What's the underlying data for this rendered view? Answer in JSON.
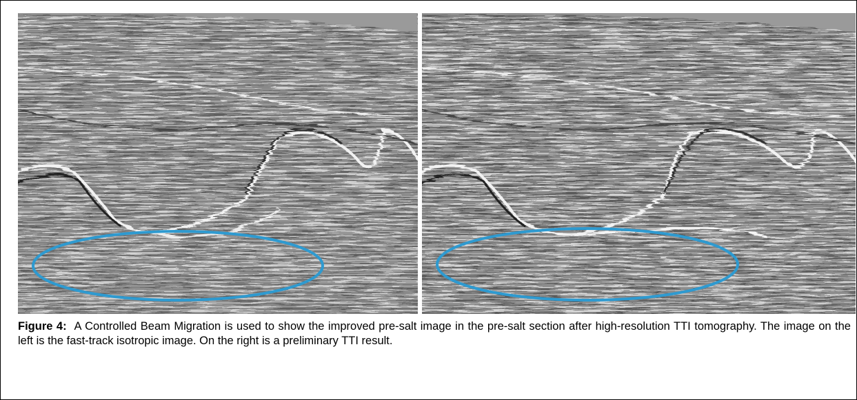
{
  "caption": {
    "label": "Figure 4:",
    "text": "A Controlled Beam Migration is used to show the improved pre-salt image in the pre-salt section after high-resolution TTI tomography.  The image on the left is the fast-track isotropic image.  On the right is a preliminary TTI result."
  }
}
